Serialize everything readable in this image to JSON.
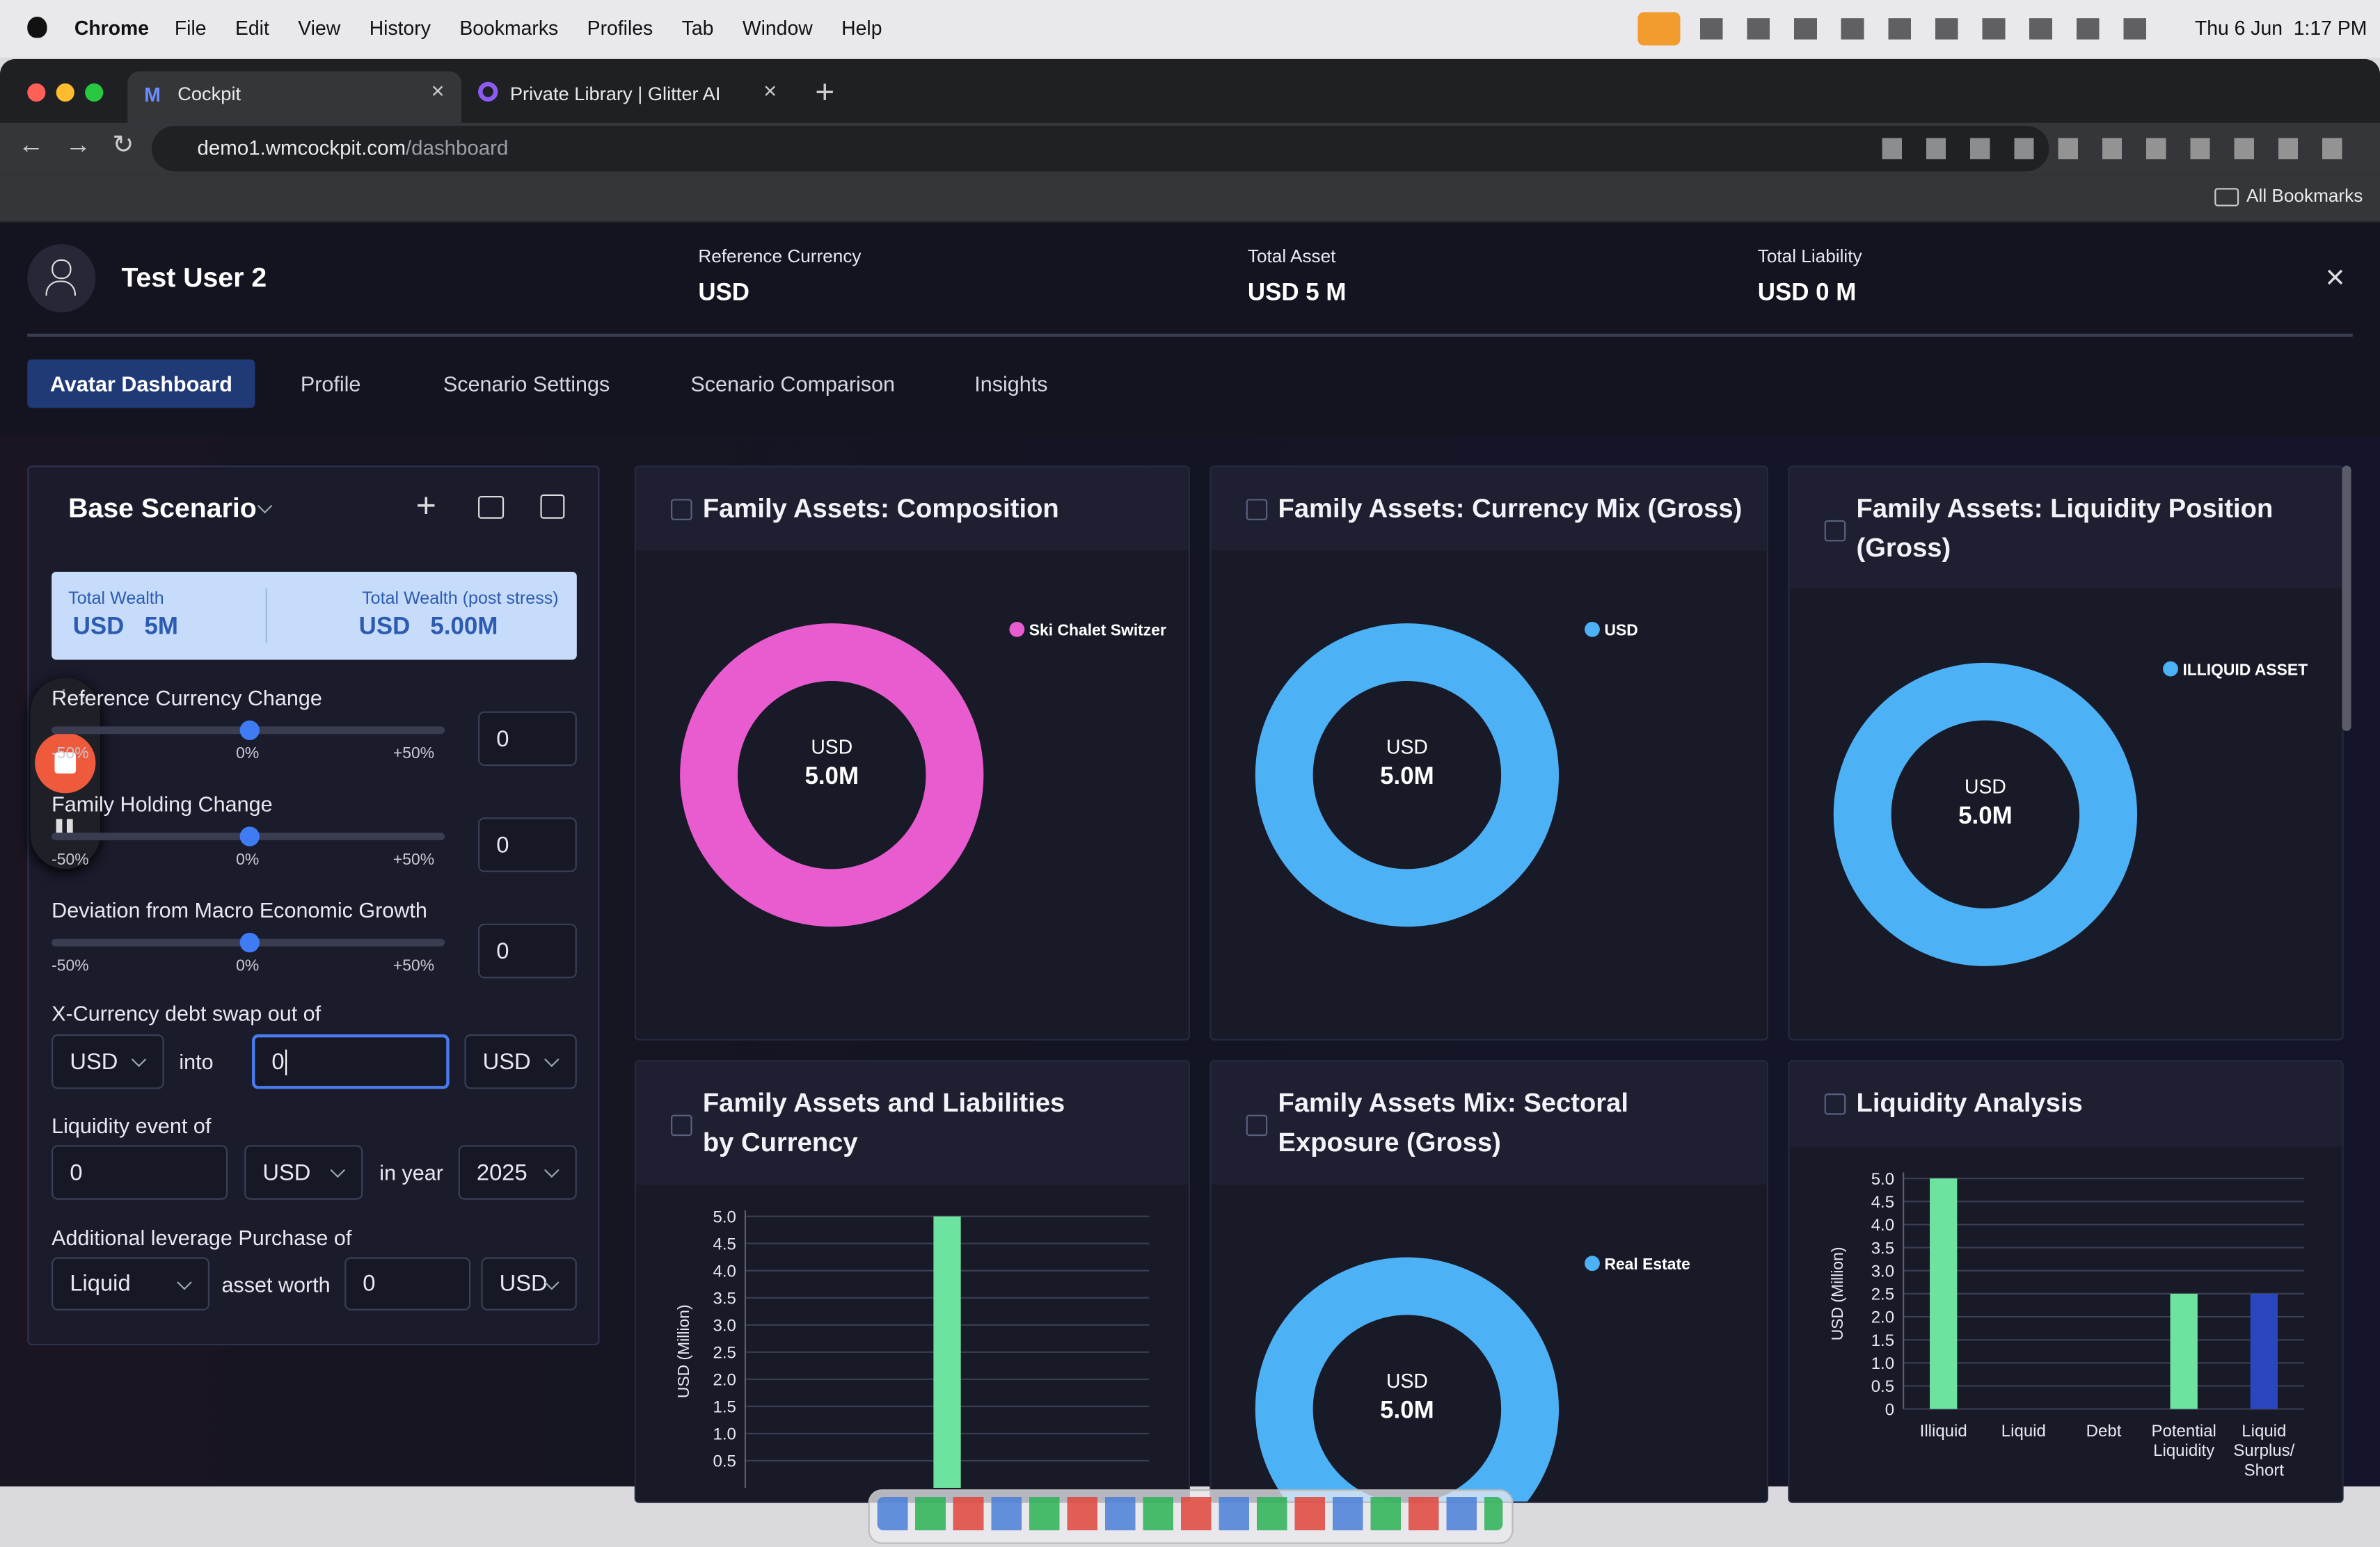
{
  "menu_bar": {
    "app": "Chrome",
    "items": [
      "File",
      "Edit",
      "View",
      "History",
      "Bookmarks",
      "Profiles",
      "Tab",
      "Window",
      "Help"
    ],
    "clock": "Thu 6 Jun  1:17 PM"
  },
  "browser": {
    "tabs": [
      "Cockpit",
      "Private Library | Glitter AI"
    ],
    "url_host": "demo1.wmcockpit.com",
    "url_path": "/dashboard",
    "bookmarks": "All Bookmarks"
  },
  "header": {
    "user": "Test User 2",
    "fields": [
      {
        "label": "Reference Currency",
        "value": "USD"
      },
      {
        "label": "Total Asset",
        "value": "USD 5 M"
      },
      {
        "label": "Total Liability",
        "value": "USD 0 M"
      }
    ]
  },
  "nav": {
    "tabs": [
      "Avatar Dashboard",
      "Profile",
      "Scenario Settings",
      "Scenario Comparison",
      "Insights"
    ],
    "active": 0
  },
  "scenario": {
    "title": "Base Scenario",
    "total_wealth_label": "Total Wealth",
    "total_wealth": "USD   5M",
    "post_stress_label": "Total Wealth (post stress)",
    "post_stress": "USD   5.00M",
    "sliders": [
      {
        "label": "Reference Currency Change",
        "value": 0,
        "ticks": [
          {
            "value": -50,
            "label": "-50%"
          },
          {
            "value": 0,
            "label": "0%"
          },
          {
            "value": 50,
            "label": "+50%"
          }
        ]
      },
      {
        "label": "Family Holding Change",
        "value": 0,
        "ticks": [
          {
            "value": -50,
            "label": "-50%"
          },
          {
            "value": 0,
            "label": "0%"
          },
          {
            "value": 50,
            "label": "+50%"
          }
        ]
      },
      {
        "label": "Deviation from Macro Economic Growth",
        "value": 0,
        "ticks": [
          {
            "value": -50,
            "label": "-50%"
          },
          {
            "value": 0,
            "label": "0%"
          },
          {
            "value": 50,
            "label": "+50%"
          }
        ]
      }
    ],
    "swap": {
      "label": "X-Currency debt swap out of",
      "from": "USD",
      "into": "into",
      "amount": "0",
      "to": "USD"
    },
    "liquidity_event": {
      "label": "Liquidity event of",
      "amount": "0",
      "currency": "USD",
      "in_year": "in year",
      "year": "2025"
    },
    "leverage": {
      "label": "Additional leverage Purchase of",
      "asset": "Liquid",
      "asset_worth": "asset worth",
      "amount": "0",
      "currency": "USD"
    }
  },
  "charts": [
    {
      "type": "donut",
      "title": "Family Assets: Composition",
      "center_label": "USD",
      "series": [
        {
          "name": "Ski Chalet Switzer",
          "color": "#e95ccf",
          "values": [
            5
          ]
        }
      ],
      "value_labels": [
        "5.0M"
      ]
    },
    {
      "type": "donut",
      "title": "Family Assets: Currency Mix (Gross)",
      "center_label": "USD",
      "series": [
        {
          "name": "USD",
          "color": "#4db1f5",
          "values": [
            5
          ]
        }
      ],
      "value_labels": [
        "5.0M"
      ]
    },
    {
      "type": "donut",
      "title": "Family Assets: Liquidity Position (Gross)",
      "center_label": "USD",
      "series": [
        {
          "name": "ILLIQUID ASSET",
          "color": "#4db1f5",
          "values": [
            5
          ]
        }
      ],
      "value_labels": [
        "5.0M"
      ]
    },
    {
      "type": "bar",
      "title": "Family Assets and Liabilities by Currency",
      "ylabel": "USD (Million)",
      "categories": [
        null
      ],
      "values": [
        5
      ],
      "colors": [
        "#6ee3a0"
      ],
      "ylim": [
        0,
        5
      ],
      "yticks": [
        0.5,
        {
          "value": 1,
          "label": "1.0"
        },
        1.5,
        {
          "value": 2,
          "label": "2.0"
        },
        2.5,
        {
          "value": 3,
          "label": "3.0"
        },
        3.5,
        {
          "value": 4,
          "label": "4.0"
        },
        4.5,
        {
          "value": 5,
          "label": "5.0"
        }
      ]
    },
    {
      "type": "donut",
      "title": "Family Assets Mix: Sectoral Exposure (Gross)",
      "center_label": "USD",
      "series": [
        {
          "name": "Real Estate",
          "color": "#4db1f5",
          "values": [
            5
          ]
        }
      ],
      "value_labels": [
        "5.0M"
      ]
    },
    {
      "type": "bar",
      "title": "Liquidity Analysis",
      "ylabel": "USD (Million)",
      "categories": [
        "Illiquid",
        "Liquid",
        "Debt",
        "Potential Liquidity",
        "Liquid Surplus/ Short"
      ],
      "values": [
        5,
        0,
        0,
        2.5,
        2.5
      ],
      "colors": [
        "#6ee3a0",
        "#6ee3a0",
        "#6ee3a0",
        "#6ee3a0",
        "#2b47c0"
      ],
      "ylim": [
        0,
        5
      ],
      "yticks": [
        0,
        0.5,
        {
          "value": 1,
          "label": "1.0"
        },
        1.5,
        {
          "value": 2,
          "label": "2.0"
        },
        2.5,
        {
          "value": 3,
          "label": "3.0"
        },
        3.5,
        {
          "value": 4,
          "label": "4.0"
        },
        4.5,
        {
          "value": 5,
          "label": "5.0"
        }
      ]
    }
  ]
}
